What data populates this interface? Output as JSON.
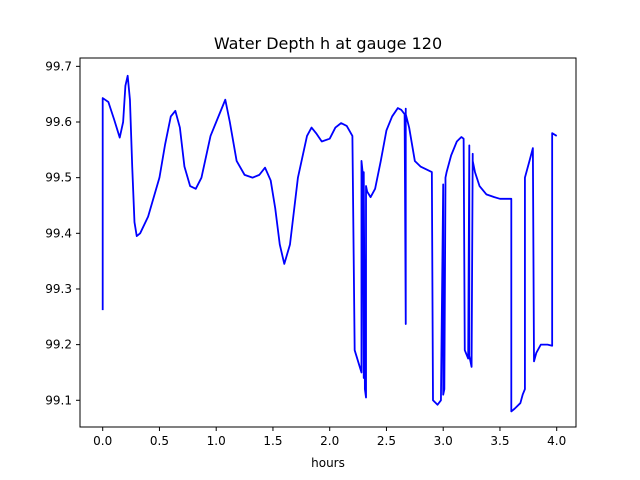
{
  "chart_data": {
    "type": "line",
    "title": "Water Depth h at gauge 120",
    "xlabel": "hours",
    "ylabel": "",
    "xlim": [
      -0.2,
      4.17
    ],
    "ylim": [
      99.052,
      99.715
    ],
    "xticks": [
      0.0,
      0.5,
      1.0,
      1.5,
      2.0,
      2.5,
      3.0,
      3.5,
      4.0
    ],
    "xtick_labels": [
      "0.0",
      "0.5",
      "1.0",
      "1.5",
      "2.0",
      "2.5",
      "3.0",
      "3.5",
      "4.0"
    ],
    "yticks": [
      99.1,
      99.2,
      99.3,
      99.4,
      99.5,
      99.6,
      99.7
    ],
    "ytick_labels": [
      "99.1",
      "99.2",
      "99.3",
      "99.4",
      "99.5",
      "99.6",
      "99.7"
    ],
    "grid": false,
    "series": [
      {
        "color": "#0000ff",
        "x": [
          0.0,
          0.0,
          0.05,
          0.1,
          0.15,
          0.18,
          0.2,
          0.22,
          0.24,
          0.26,
          0.28,
          0.3,
          0.33,
          0.4,
          0.5,
          0.55,
          0.6,
          0.64,
          0.68,
          0.72,
          0.77,
          0.82,
          0.87,
          0.95,
          1.0,
          1.08,
          1.12,
          1.18,
          1.25,
          1.32,
          1.38,
          1.43,
          1.48,
          1.52,
          1.56,
          1.6,
          1.65,
          1.72,
          1.8,
          1.84,
          1.88,
          1.93,
          2.0,
          2.05,
          2.1,
          2.15,
          2.2,
          2.22,
          2.28,
          2.28,
          2.29,
          2.3,
          2.3,
          2.31,
          2.32,
          2.32,
          2.33,
          2.36,
          2.4,
          2.45,
          2.5,
          2.55,
          2.6,
          2.63,
          2.66,
          2.67,
          2.67,
          2.67,
          2.7,
          2.75,
          2.8,
          2.85,
          2.9,
          2.91,
          2.95,
          2.98,
          3.0,
          3.0,
          3.01,
          3.02,
          3.02,
          3.03,
          3.07,
          3.12,
          3.16,
          3.18,
          3.19,
          3.21,
          3.22,
          3.23,
          3.23,
          3.24,
          3.25,
          3.26,
          3.26,
          3.28,
          3.32,
          3.38,
          3.45,
          3.5,
          3.55,
          3.6,
          3.6,
          3.63,
          3.68,
          3.7,
          3.72,
          3.72,
          3.76,
          3.79,
          3.8,
          3.82,
          3.86,
          3.92,
          3.96,
          3.96,
          4.0
        ],
        "y": [
          99.262,
          99.643,
          99.636,
          99.605,
          99.572,
          99.6,
          99.665,
          99.683,
          99.64,
          99.52,
          99.42,
          99.395,
          99.4,
          99.43,
          99.5,
          99.56,
          99.61,
          99.62,
          99.59,
          99.52,
          99.485,
          99.48,
          99.5,
          99.575,
          99.6,
          99.64,
          99.6,
          99.53,
          99.505,
          99.5,
          99.505,
          99.518,
          99.495,
          99.445,
          99.38,
          99.345,
          99.38,
          99.5,
          99.575,
          99.59,
          99.58,
          99.565,
          99.57,
          99.59,
          99.598,
          99.593,
          99.575,
          99.19,
          99.15,
          99.53,
          99.51,
          99.14,
          99.51,
          99.12,
          99.105,
          99.485,
          99.475,
          99.465,
          99.48,
          99.53,
          99.585,
          99.61,
          99.625,
          99.622,
          99.614,
          99.237,
          99.624,
          99.614,
          99.59,
          99.53,
          99.52,
          99.515,
          99.51,
          99.1,
          99.092,
          99.1,
          99.488,
          99.11,
          99.12,
          99.488,
          99.5,
          99.51,
          99.54,
          99.565,
          99.573,
          99.57,
          99.19,
          99.18,
          99.175,
          99.558,
          99.18,
          99.17,
          99.16,
          99.543,
          99.53,
          99.51,
          99.485,
          99.47,
          99.465,
          99.462,
          99.462,
          99.462,
          99.08,
          99.085,
          99.095,
          99.11,
          99.12,
          99.5,
          99.53,
          99.553,
          99.17,
          99.185,
          99.2,
          99.2,
          99.198,
          99.58,
          99.575
        ]
      }
    ]
  }
}
